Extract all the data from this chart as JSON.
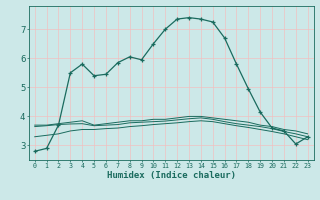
{
  "title": "",
  "xlabel": "Humidex (Indice chaleur)",
  "ylabel": "",
  "bg_color": "#cce8e8",
  "line_color": "#1a6b5e",
  "grid_color": "#f0c0c0",
  "xlim": [
    -0.5,
    23.5
  ],
  "ylim": [
    2.5,
    7.8
  ],
  "yticks": [
    3,
    4,
    5,
    6,
    7
  ],
  "xticks": [
    0,
    1,
    2,
    3,
    4,
    5,
    6,
    7,
    8,
    9,
    10,
    11,
    12,
    13,
    14,
    15,
    16,
    17,
    18,
    19,
    20,
    21,
    22,
    23
  ],
  "series1_x": [
    0,
    1,
    2,
    3,
    4,
    5,
    6,
    7,
    8,
    9,
    10,
    11,
    12,
    13,
    14,
    15,
    16,
    17,
    18,
    19,
    20,
    21,
    22,
    23
  ],
  "series1_y": [
    2.8,
    2.9,
    3.7,
    5.5,
    5.8,
    5.4,
    5.45,
    5.85,
    6.05,
    5.95,
    6.5,
    7.0,
    7.35,
    7.4,
    7.35,
    7.25,
    6.7,
    5.8,
    4.95,
    4.15,
    3.6,
    3.5,
    3.05,
    3.3
  ],
  "series2_x": [
    0,
    1,
    2,
    3,
    4,
    5,
    6,
    7,
    8,
    9,
    10,
    11,
    12,
    13,
    14,
    15,
    16,
    17,
    18,
    19,
    20,
    21,
    22,
    23
  ],
  "series2_y": [
    3.7,
    3.7,
    3.75,
    3.8,
    3.85,
    3.7,
    3.75,
    3.8,
    3.85,
    3.85,
    3.9,
    3.9,
    3.95,
    4.0,
    4.0,
    3.95,
    3.9,
    3.85,
    3.8,
    3.7,
    3.65,
    3.55,
    3.5,
    3.4
  ],
  "series3_x": [
    0,
    1,
    2,
    3,
    4,
    5,
    6,
    7,
    8,
    9,
    10,
    11,
    12,
    13,
    14,
    15,
    16,
    17,
    18,
    19,
    20,
    21,
    22,
    23
  ],
  "series3_y": [
    3.65,
    3.68,
    3.72,
    3.74,
    3.75,
    3.68,
    3.7,
    3.72,
    3.78,
    3.8,
    3.82,
    3.84,
    3.88,
    3.92,
    3.95,
    3.9,
    3.82,
    3.75,
    3.7,
    3.65,
    3.58,
    3.48,
    3.4,
    3.3
  ],
  "series4_x": [
    0,
    1,
    2,
    3,
    4,
    5,
    6,
    7,
    8,
    9,
    10,
    11,
    12,
    13,
    14,
    15,
    16,
    17,
    18,
    19,
    20,
    21,
    22,
    23
  ],
  "series4_y": [
    3.3,
    3.35,
    3.4,
    3.5,
    3.55,
    3.55,
    3.58,
    3.6,
    3.65,
    3.68,
    3.72,
    3.75,
    3.78,
    3.82,
    3.85,
    3.82,
    3.75,
    3.68,
    3.62,
    3.55,
    3.48,
    3.4,
    3.3,
    3.2
  ]
}
